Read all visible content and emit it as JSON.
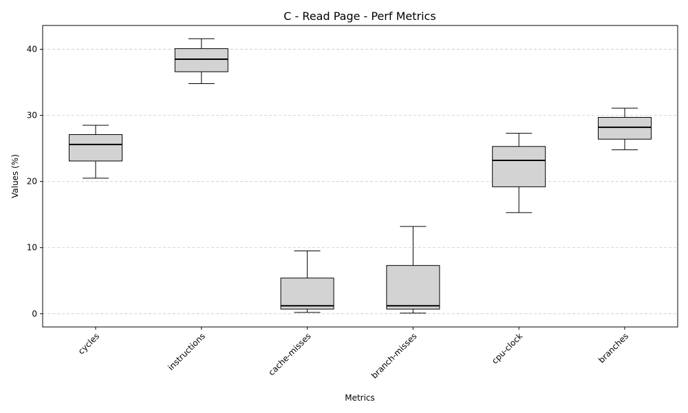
{
  "chart_data": {
    "type": "box",
    "title": "C - Read Page - Perf Metrics",
    "xlabel": "Metrics",
    "ylabel": "Values (%)",
    "ylim": [
      -2,
      43.6
    ],
    "yticks": [
      0,
      10,
      20,
      30,
      40
    ],
    "grid": "y-dashed",
    "colors": {
      "box_fill": "#d3d3d3",
      "box_edge": "#000000",
      "grid": "#c8c8c8"
    },
    "categories": [
      "cycles",
      "instructions",
      "cache-misses",
      "branch-misses",
      "cpu-clock",
      "branches"
    ],
    "boxes": [
      {
        "label": "cycles",
        "whisker_low": 20.5,
        "q1": 23.1,
        "median": 25.6,
        "q3": 27.1,
        "whisker_high": 28.5
      },
      {
        "label": "instructions",
        "whisker_low": 34.8,
        "q1": 36.6,
        "median": 38.5,
        "q3": 40.1,
        "whisker_high": 41.6
      },
      {
        "label": "cache-misses",
        "whisker_low": 0.2,
        "q1": 0.7,
        "median": 1.2,
        "q3": 5.4,
        "whisker_high": 9.5
      },
      {
        "label": "branch-misses",
        "whisker_low": 0.1,
        "q1": 0.7,
        "median": 1.2,
        "q3": 7.3,
        "whisker_high": 13.2
      },
      {
        "label": "cpu-clock",
        "whisker_low": 15.3,
        "q1": 19.2,
        "median": 23.2,
        "q3": 25.3,
        "whisker_high": 27.3
      },
      {
        "label": "branches",
        "whisker_low": 24.8,
        "q1": 26.4,
        "median": 28.2,
        "q3": 29.7,
        "whisker_high": 31.1
      }
    ]
  }
}
